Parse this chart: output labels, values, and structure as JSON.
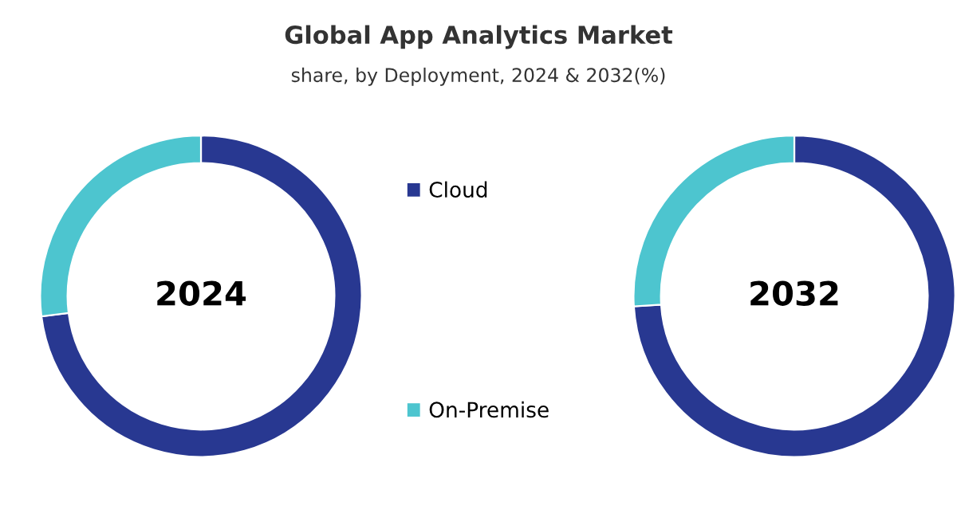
{
  "chart_data": {
    "type": "donut",
    "title": "Global App Analytics Market",
    "subtitle": "share, by Deployment, 2024 & 2032(%)",
    "categories": [
      "Cloud",
      "On-Premise"
    ],
    "colors": [
      "#283891",
      "#4dc5cf"
    ],
    "legend": "right",
    "series": [
      {
        "name": "2024",
        "values": [
          73,
          27
        ]
      },
      {
        "name": "2032",
        "values": [
          74,
          26
        ]
      }
    ]
  }
}
